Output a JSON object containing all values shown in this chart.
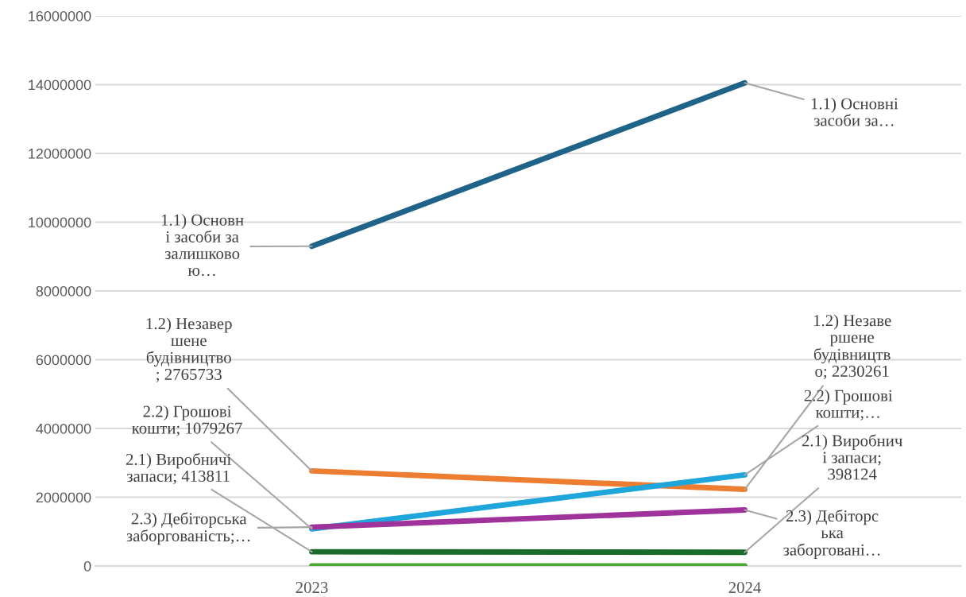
{
  "chart_data": {
    "type": "line",
    "categories": [
      "2023",
      "2024"
    ],
    "series": [
      {
        "color": "#1f6388",
        "values": [
          9300000,
          14050000
        ],
        "value_labels": [
          "1.1) Основн\nі засоби за\nзалишково\nю…",
          "1.1) Основні\nзасоби за…"
        ]
      },
      {
        "color": "#ed7d31",
        "values": [
          2765733,
          2230261
        ],
        "value_labels": [
          "1.2) Незавер\nшене\nбудівництво\n; 2765733",
          "1.2) Незаве\nршене\nбудівництв\nо; 2230261"
        ]
      },
      {
        "color": "#1ea5dc",
        "values": [
          1079267,
          2650000
        ],
        "value_labels": [
          "2.2) Грошові\nкошти; 1079267",
          "2.2) Грошові\nкошти;…"
        ]
      },
      {
        "color": "#1a6b2a",
        "values": [
          413811,
          398124
        ],
        "value_labels": [
          "2.1) Виробничі\nзапаси; 413811",
          "2.1) Виробнич\nі запаси;\n398124"
        ]
      },
      {
        "color": "#a0329b",
        "values": [
          1130000,
          1630000
        ],
        "value_labels": [
          "2.3) Дебіторська\nзаборгованість;…",
          "2.3) Дебіторс\nька\nзаборговані…"
        ]
      },
      {
        "color": "#4aa832",
        "values": [
          0,
          0
        ]
      }
    ],
    "ylim": [
      0,
      16000000
    ],
    "yticks": [
      0,
      2000000,
      4000000,
      6000000,
      8000000,
      10000000,
      12000000,
      14000000,
      16000000
    ],
    "grid": "y",
    "marker": "none",
    "line_style": "solid"
  }
}
